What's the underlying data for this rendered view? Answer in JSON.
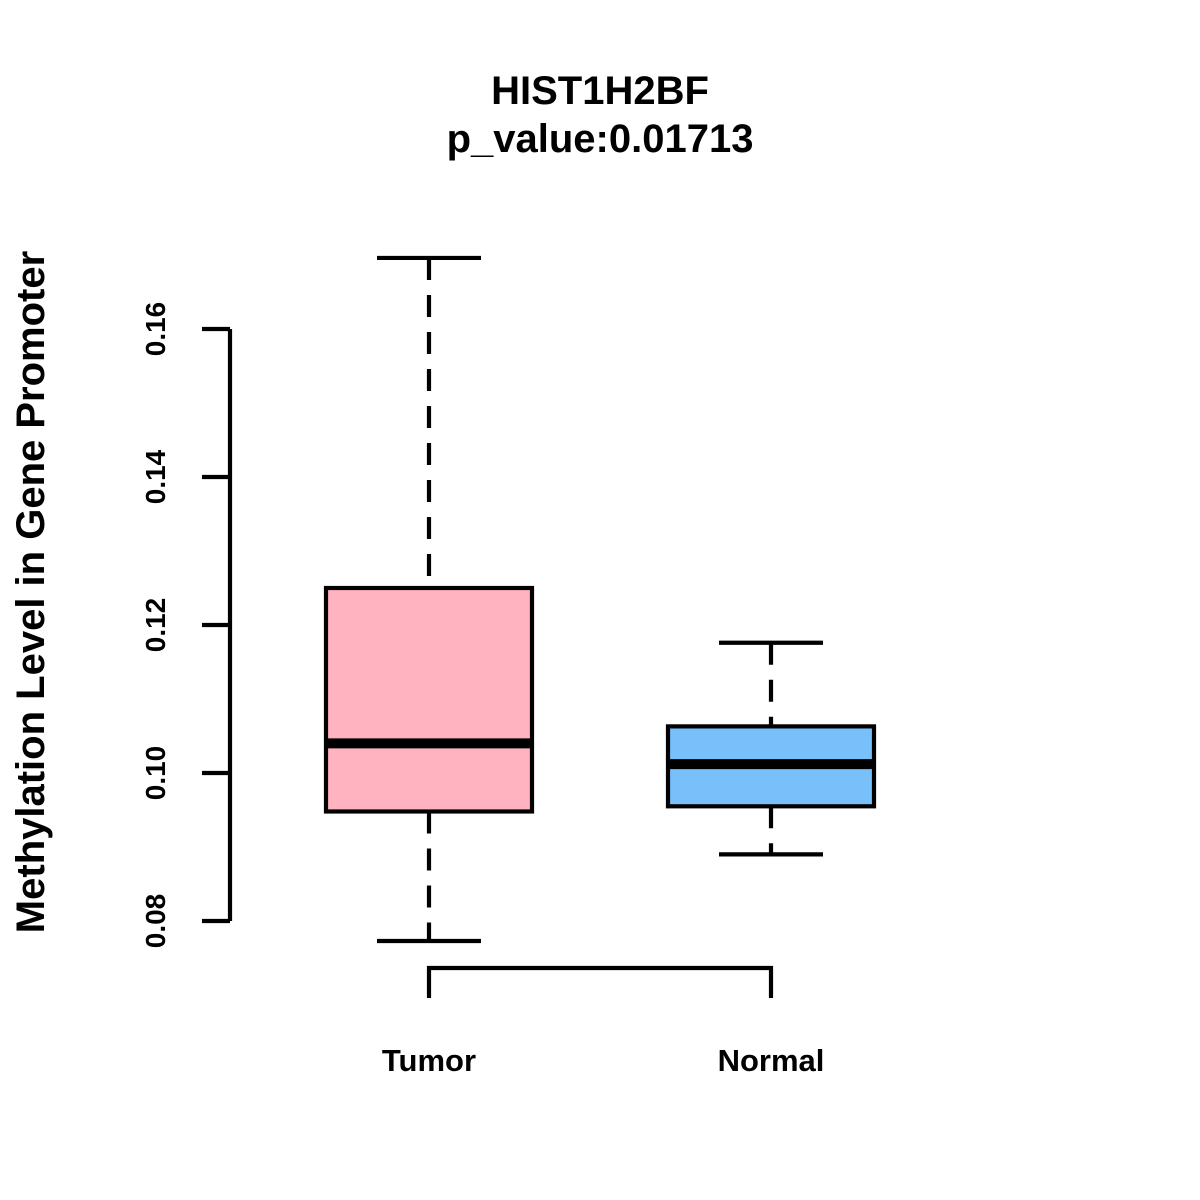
{
  "chart_data": {
    "type": "boxplot",
    "title": "HIST1H2BF",
    "subtitle": "p_value:0.01713",
    "ylabel": "Methylation Level in Gene Promoter",
    "xlabel": "",
    "yaxis_range": [
      0.08,
      0.16
    ],
    "ytick_values": [
      0.08,
      0.1,
      0.12,
      0.14,
      0.16
    ],
    "ytick_labels": [
      "0.08",
      "0.10",
      "0.12",
      "0.14",
      "0.16"
    ],
    "grid": "off",
    "legend": "none",
    "colors": {
      "box_border": "#000000",
      "median": "#000000",
      "whisker": "#000000",
      "axis": "#000000",
      "text": "#000000",
      "background": "#ffffff"
    },
    "groups": [
      {
        "label": "Tumor",
        "color": "#FFB3C0",
        "whisker_low": 0.0773,
        "q1": 0.0948,
        "median": 0.104,
        "q3": 0.125,
        "whisker_high": 0.1696
      },
      {
        "label": "Normal",
        "color": "#78C0FA",
        "whisker_low": 0.089,
        "q1": 0.0955,
        "median": 0.1012,
        "q3": 0.1063,
        "whisker_high": 0.1176
      }
    ],
    "xaxis_bracket": {
      "present": true,
      "connects": [
        "Tumor",
        "Normal"
      ]
    }
  }
}
